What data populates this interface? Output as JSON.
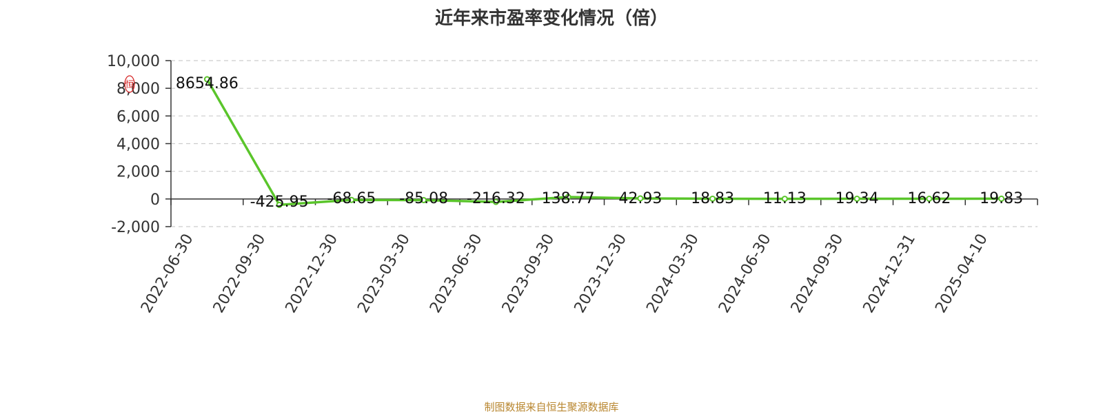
{
  "chart_data": {
    "type": "line",
    "title": "近年来市盈率变化情况（倍）",
    "categories": [
      "2022-06-30",
      "2022-09-30",
      "2022-12-30",
      "2023-03-30",
      "2023-06-30",
      "2023-09-30",
      "2023-12-30",
      "2024-03-30",
      "2024-06-30",
      "2024-09-30",
      "2024-12-31",
      "2025-04-10"
    ],
    "series": [
      {
        "values": [
          8654.86,
          -425.95,
          -68.65,
          -85.08,
          -216.32,
          138.77,
          42.93,
          18.83,
          11.13,
          19.34,
          16.62,
          19.83
        ]
      }
    ],
    "data_labels": [
      "8654.86",
      "-425.95",
      "-68.65",
      "-85.08",
      "-216.32",
      "138.77",
      "42.93",
      "18.83",
      "11.13",
      "19.34",
      "16.62",
      "19.83"
    ],
    "y_ticks": [
      10000,
      8000,
      6000,
      4000,
      2000,
      0,
      -2000
    ],
    "y_tick_labels": [
      "10,000",
      "8,000",
      "6,000",
      "4,000",
      "2,000",
      "0",
      "-2,000"
    ],
    "ylim": [
      -2000,
      10000
    ],
    "xlabel": "",
    "ylabel": "",
    "grid": true,
    "line_color": "#5ac52b"
  },
  "footer": {
    "source": "制图数据来自恒生聚源数据库"
  },
  "watermark": {
    "text": "恒"
  }
}
